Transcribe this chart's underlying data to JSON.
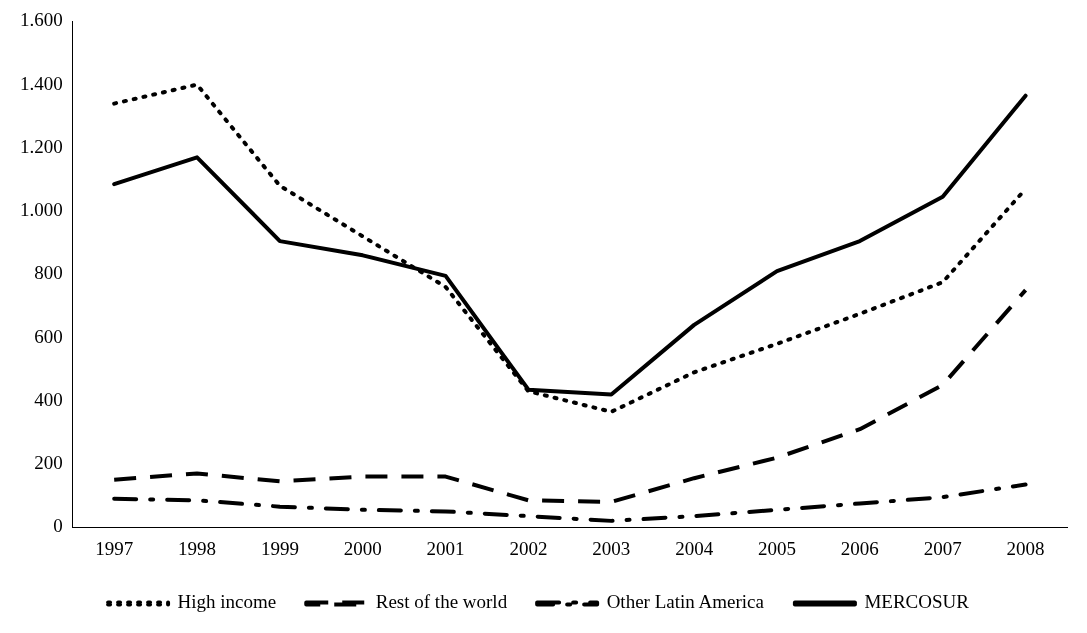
{
  "chart_data": {
    "type": "line",
    "categories": [
      "1997",
      "1998",
      "1999",
      "2000",
      "2001",
      "2002",
      "2003",
      "2004",
      "2005",
      "2006",
      "2007",
      "2008"
    ],
    "series": [
      {
        "name": "High income",
        "color": "#000000",
        "line_style": "dotted",
        "values": [
          1340,
          1400,
          1080,
          920,
          760,
          430,
          365,
          490,
          580,
          675,
          775,
          1070
        ]
      },
      {
        "name": "Rest of the world",
        "color": "#000000",
        "line_style": "dashed",
        "values": [
          150,
          170,
          145,
          160,
          160,
          85,
          80,
          155,
          220,
          310,
          450,
          750
        ]
      },
      {
        "name": "Other Latin America",
        "color": "#000000",
        "line_style": "dashdot",
        "values": [
          90,
          85,
          65,
          55,
          50,
          35,
          20,
          35,
          55,
          75,
          95,
          135
        ]
      },
      {
        "name": "MERCOSUR",
        "color": "#000000",
        "line_style": "solid",
        "values": [
          1085,
          1170,
          905,
          860,
          795,
          435,
          420,
          640,
          810,
          905,
          1045,
          1365
        ]
      }
    ],
    "ylim": [
      0,
      1600
    ],
    "yticks": [
      0,
      {
        "value": 200,
        "label": "200"
      },
      {
        "value": 400,
        "label": "400"
      },
      {
        "value": 600,
        "label": "600"
      },
      {
        "value": 800,
        "label": "800"
      },
      {
        "value": 1000,
        "label": "1.000"
      },
      {
        "value": 1200,
        "label": "1.200"
      },
      {
        "value": 1400,
        "label": "1.400"
      },
      {
        "value": 1600,
        "label": "1.600"
      }
    ],
    "grid": false,
    "legend": "bottom",
    "marker": "none"
  }
}
